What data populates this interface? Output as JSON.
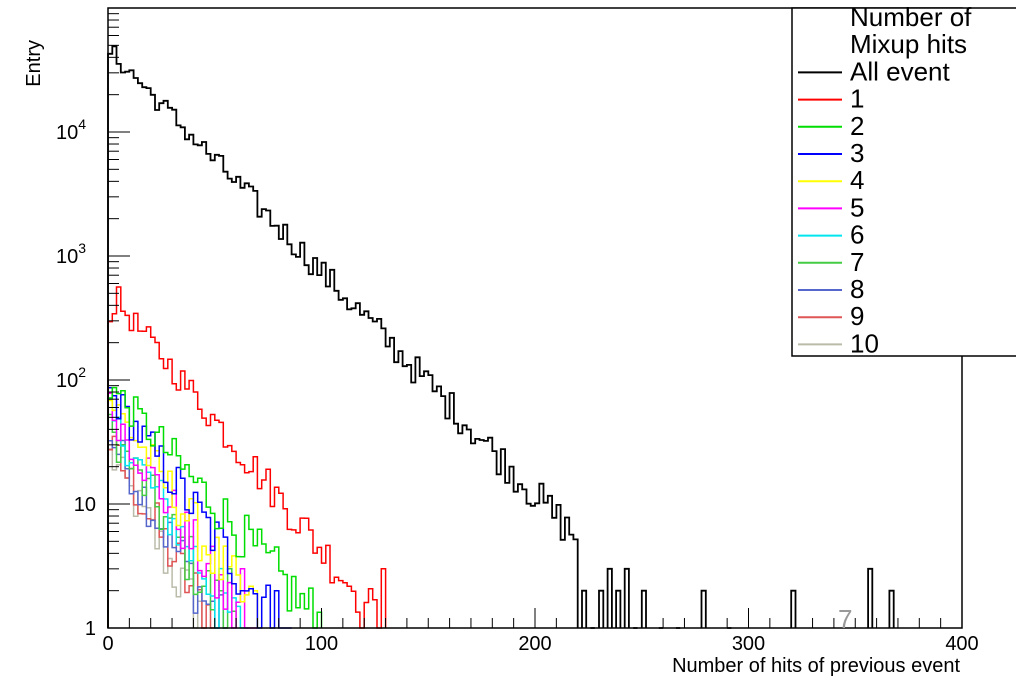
{
  "chart_data": {
    "type": "histogram",
    "xlabel": "Number of hits of previous event",
    "ylabel": "Entry",
    "xlim": [
      0,
      400
    ],
    "ylim": [
      1,
      100000
    ],
    "log_y": true,
    "grid": false,
    "x_ticks": [
      "0",
      "100",
      "200",
      "300",
      "400"
    ],
    "y_ticks": [
      {
        "label": "1",
        "value": 1
      },
      {
        "label": "10",
        "value": 10
      },
      {
        "label": "10",
        "exp": "2",
        "value": 100
      },
      {
        "label": "10",
        "exp": "3",
        "value": 1000
      },
      {
        "label": "10",
        "exp": "4",
        "value": 10000
      }
    ],
    "legend": {
      "title_lines": [
        "Number of",
        "Mixup hits"
      ],
      "placement": "top-right"
    },
    "stray_annotation": "7",
    "series": [
      {
        "name": "All event",
        "color": "#000000",
        "start": 0,
        "end": 220,
        "y0": 45000,
        "slope": 0.0414,
        "noise": 0.18,
        "isolated": [
          [
            222,
            2
          ],
          [
            226,
            1
          ],
          [
            230,
            2
          ],
          [
            234,
            3
          ],
          [
            238,
            2
          ],
          [
            242,
            3
          ],
          [
            246,
            1
          ],
          [
            250,
            2
          ],
          [
            258,
            1
          ],
          [
            266,
            1
          ],
          [
            278,
            2
          ],
          [
            290,
            1
          ],
          [
            320,
            2
          ],
          [
            356,
            3
          ],
          [
            366,
            2
          ]
        ]
      },
      {
        "name": "1",
        "color": "#ff0000",
        "start": 0,
        "end": 130,
        "y0": 500,
        "slope": 0.048,
        "noise": 0.22,
        "peak": 6
      },
      {
        "name": "2",
        "color": "#00dd00",
        "start": 0,
        "end": 100,
        "y0": 90,
        "slope": 0.045,
        "noise": 0.3
      },
      {
        "name": "3",
        "color": "#0000ff",
        "start": 0,
        "end": 85,
        "y0": 80,
        "slope": 0.055,
        "noise": 0.32
      },
      {
        "name": "4",
        "color": "#ffff00",
        "start": 0,
        "end": 70,
        "y0": 70,
        "slope": 0.06,
        "noise": 0.32
      },
      {
        "name": "5",
        "color": "#ff00ff",
        "start": 0,
        "end": 70,
        "y0": 60,
        "slope": 0.065,
        "noise": 0.34
      },
      {
        "name": "6",
        "color": "#00e5ee",
        "start": 0,
        "end": 65,
        "y0": 50,
        "slope": 0.065,
        "noise": 0.34
      },
      {
        "name": "7",
        "color": "#44cc44",
        "start": 0,
        "end": 60,
        "y0": 40,
        "slope": 0.065,
        "noise": 0.34
      },
      {
        "name": "8",
        "color": "#5566cc",
        "start": 0,
        "end": 55,
        "y0": 35,
        "slope": 0.068,
        "noise": 0.34
      },
      {
        "name": "9",
        "color": "#e05555",
        "start": 0,
        "end": 50,
        "y0": 30,
        "slope": 0.07,
        "noise": 0.34
      },
      {
        "name": "10",
        "color": "#bbbbaa",
        "start": 0,
        "end": 45,
        "y0": 25,
        "slope": 0.072,
        "noise": 0.34
      }
    ]
  }
}
